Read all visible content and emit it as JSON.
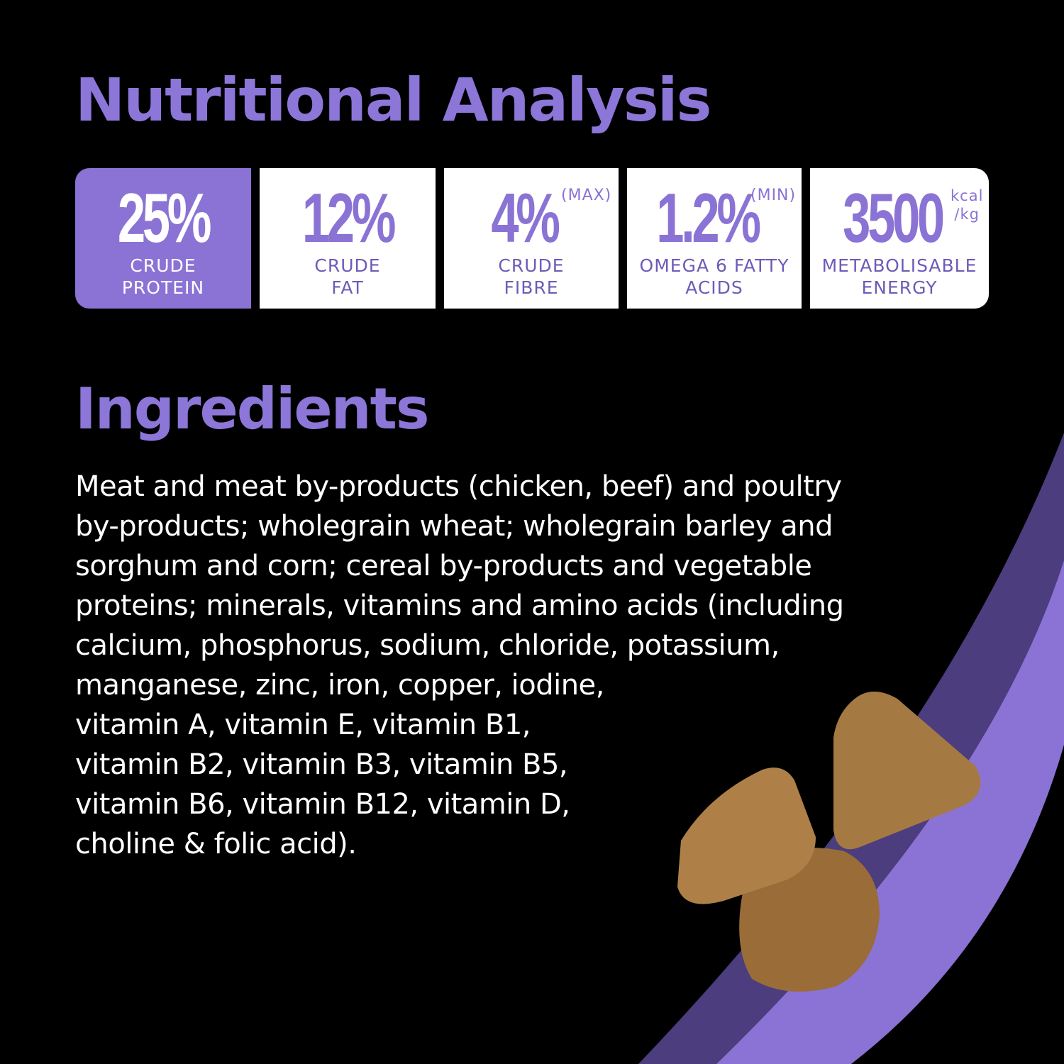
{
  "nutrition": {
    "title": "Nutritional Analysis",
    "items": [
      {
        "value": "25%",
        "qualifier": "",
        "label1": "CRUDE",
        "label2": "PROTEIN",
        "highlighted": true
      },
      {
        "value": "12%",
        "qualifier": "",
        "label1": "CRUDE",
        "label2": "FAT",
        "highlighted": false
      },
      {
        "value": "4%",
        "qualifier": "(MAX)",
        "label1": "CRUDE",
        "label2": "FIBRE",
        "highlighted": false
      },
      {
        "value": "1.2%",
        "qualifier": "(MIN)",
        "label1": "OMEGA 6 FATTY",
        "label2": "ACIDS",
        "highlighted": false
      },
      {
        "value": "3500",
        "qualifier": "kcal",
        "qualifier2": "/kg",
        "label1": "METABOLISABLE",
        "label2": "ENERGY",
        "highlighted": false
      }
    ]
  },
  "ingredients": {
    "title": "Ingredients",
    "lines": [
      "Meat and meat by-products (chicken, beef) and poultry",
      "by-products; wholegrain wheat; wholegrain barley and",
      "sorghum and corn; cereal by-products and vegetable",
      "proteins; minerals, vitamins and amino acids (including",
      "calcium, phosphorus, sodium, chloride, potassium,",
      "manganese, zinc, iron, copper, iodine,",
      "vitamin A, vitamin E, vitamin B1,",
      "vitamin B2, vitamin B3, vitamin B5,",
      "vitamin B6, vitamin B12, vitamin D,",
      "choline & folic acid)."
    ]
  },
  "colors": {
    "accent": "#8a73d4",
    "background": "#000000",
    "swoosh_dark": "#4b3d7e",
    "kibble": "#a8793f"
  }
}
